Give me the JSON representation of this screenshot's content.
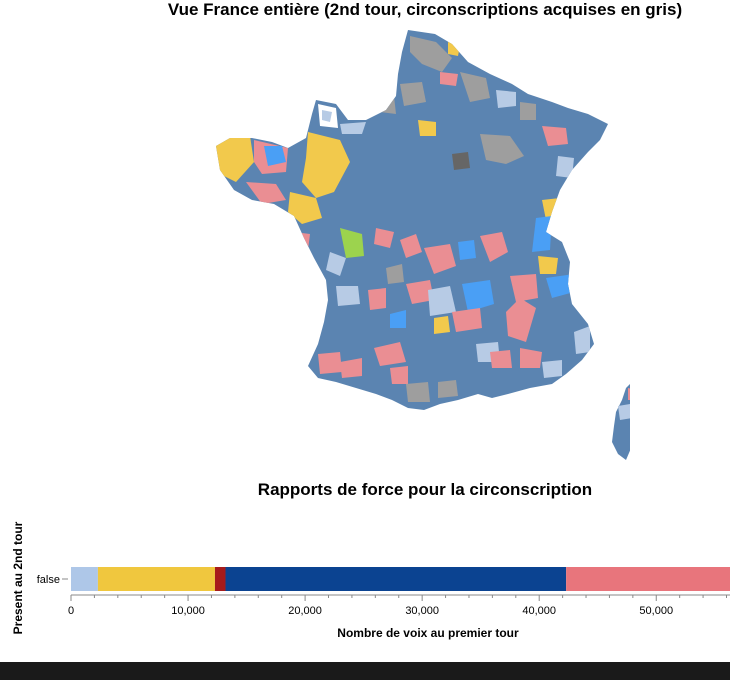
{
  "map": {
    "title": "Vue France entière (2nd tour, circonscriptions acquises en gris)",
    "colors": {
      "dominant": "#5b84b1",
      "acquired": "#9e9e9e",
      "acquired_dark": "#666666",
      "light_blue": "#b7cbe5",
      "yellow": "#f2c94c",
      "pink": "#ea8e93",
      "bright_blue": "#4a9ff5",
      "green": "#9cd34e"
    }
  },
  "chart_data": {
    "type": "bar",
    "title": "Rapports de force pour la circonscription",
    "orientation": "horizontal-stacked",
    "categories": [
      "false"
    ],
    "series": [
      {
        "values": [
          2300
        ],
        "color": "#aec7e8"
      },
      {
        "values": [
          10000
        ],
        "color": "#f0c73e"
      },
      {
        "values": [
          900
        ],
        "color": "#a61b1b"
      },
      {
        "values": [
          29100
        ],
        "color": "#0b4391"
      },
      {
        "values": [
          14000
        ],
        "color": "#e8757c"
      }
    ],
    "xlabel": "Nombre de voix au premier tour",
    "ylabel": "Present au 2nd tour",
    "xlim": [
      0,
      56300
    ],
    "xticks": [
      0,
      10000,
      20000,
      30000,
      40000,
      50000
    ],
    "xtick_labels": [
      "0",
      "10,000",
      "20,000",
      "30,000",
      "40,000",
      "50,000"
    ],
    "grid": false
  }
}
